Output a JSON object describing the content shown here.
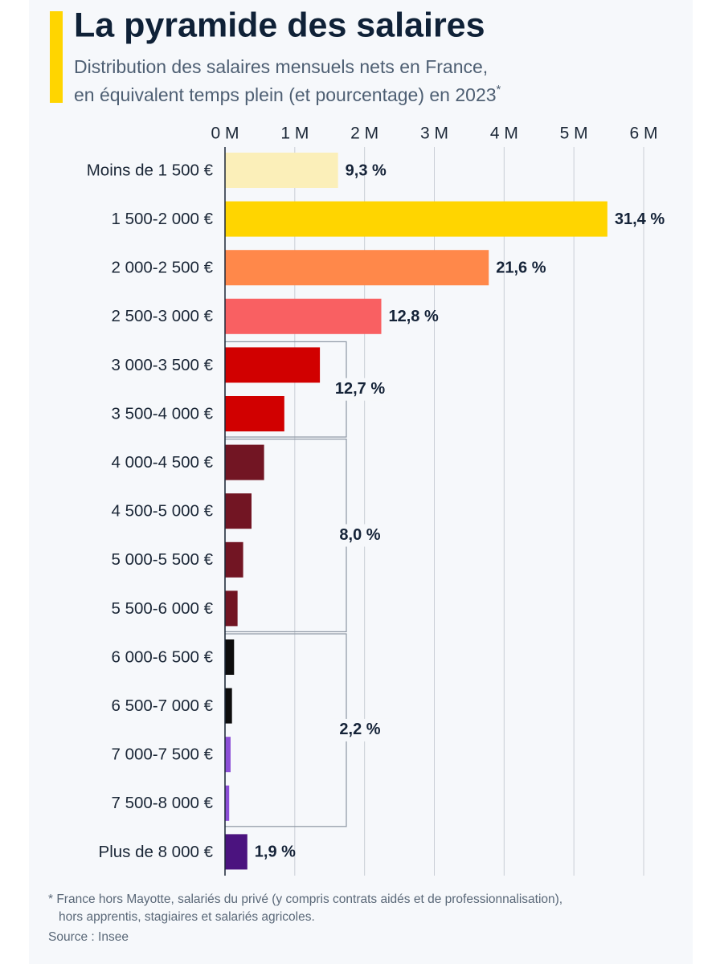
{
  "chart_data": {
    "type": "bar",
    "orientation": "horizontal",
    "title": "La pyramide des salaires",
    "subtitle": [
      "Distribution des salaires mensuels nets en France,",
      "en équivalent temps plein (et pourcentage) en 2023"
    ],
    "subtitle_mark": "*",
    "categories": [
      "Moins de 1 500 €",
      "1 500-2 000 €",
      "2 000-2 500 €",
      "2 500-3 000 €",
      "3 000-3 500 €",
      "3 500-4 000 €",
      "4 000-4 500 €",
      "4 500-5 000 €",
      "5 000-5 500 €",
      "5 500-6 000 €",
      "6 000-6 500 €",
      "6 500-7 000 €",
      "7 000-7 500 €",
      "7 500-8 000 €",
      "Plus de 8 000 €"
    ],
    "values": [
      1.62,
      5.48,
      3.78,
      2.24,
      1.36,
      0.85,
      0.56,
      0.38,
      0.26,
      0.18,
      0.13,
      0.1,
      0.08,
      0.06,
      0.32
    ],
    "colors": [
      "#fbefb9",
      "#ffd500",
      "#ff884a",
      "#f96062",
      "#d10000",
      "#d10000",
      "#721523",
      "#721523",
      "#721523",
      "#721523",
      "#0d0d0d",
      "#0d0d0d",
      "#8c4fd6",
      "#8c4fd6",
      "#4b137f"
    ],
    "share_labels": [
      "9,3 %",
      "31,4 %",
      "21,6 %",
      "12,8 %",
      null,
      null,
      null,
      null,
      null,
      null,
      null,
      null,
      null,
      null,
      "1,9 %"
    ],
    "groups": [
      {
        "label": "12,7 %",
        "members": [
          "3 000-3 500 €",
          "3 500-4 000 €"
        ]
      },
      {
        "label": "8,0 %",
        "members": [
          "4 000-4 500 €",
          "4 500-5 000 €",
          "5 000-5 500 €",
          "5 500-6 000 €"
        ]
      },
      {
        "label": "2,2 %",
        "members": [
          "6 000-6 500 €",
          "6 500-7 000 €",
          "7 000-7 500 €",
          "7 500-8 000 €"
        ]
      }
    ],
    "xlim": [
      0,
      6
    ],
    "xticks": [
      {
        "value": 0,
        "label": "0 M"
      },
      {
        "value": 1,
        "label": "1 M"
      },
      {
        "value": 2,
        "label": "2 M"
      },
      {
        "value": 3,
        "label": "3 M"
      },
      {
        "value": 4,
        "label": "4 M"
      },
      {
        "value": 5,
        "label": "5 M"
      },
      {
        "value": 6,
        "label": "6 M"
      }
    ],
    "grid": true,
    "footnote": [
      "* France hors Mayotte, salariés du privé (y compris contrats aidés et de professionnalisation),",
      "hors apprentis, stagiaires et salariés agricoles."
    ],
    "source": "Source : Insee"
  }
}
